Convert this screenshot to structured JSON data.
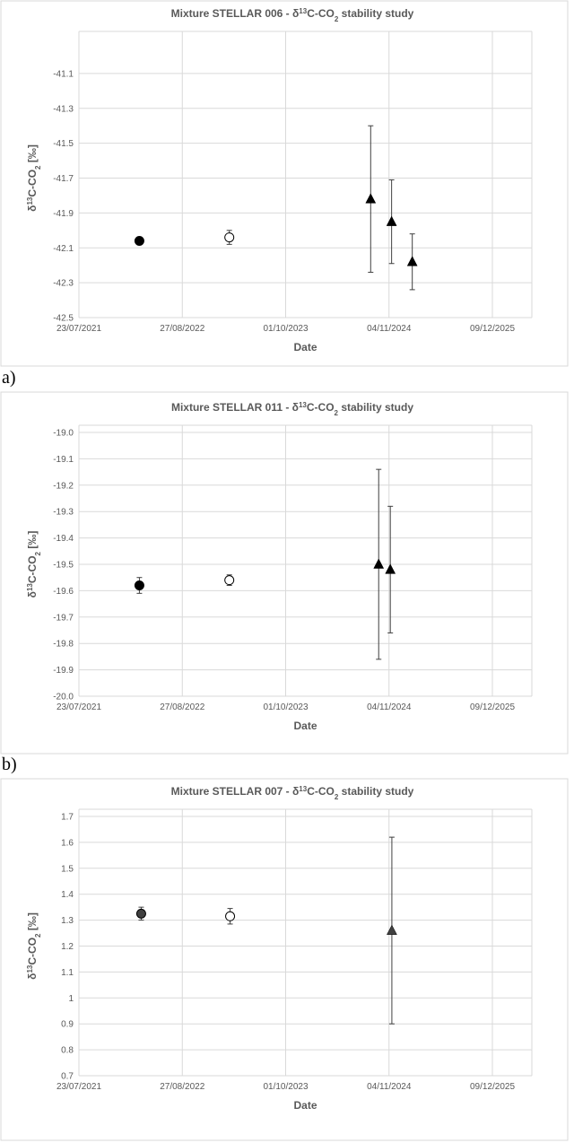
{
  "sublabels": [
    "a)",
    "b)"
  ],
  "chart_data": [
    {
      "type": "scatter",
      "title_prefix": "Mixture STELLAR 006  - δ",
      "title_sup": "13",
      "title_mid": "C-CO",
      "title_sub": "2",
      "title_suffix": " stability study",
      "xlabel": "Date",
      "ylabel_prefix": "δ",
      "ylabel_sup": "13",
      "ylabel_mid": "C-CO",
      "ylabel_sub": "2",
      "ylabel_suffix": " [‰]",
      "x_ticks": [
        "23/07/2021",
        "27/08/2022",
        "01/10/2023",
        "04/11/2024",
        "09/12/2025"
      ],
      "x_range": [
        "23/07/2021",
        "09/12/2025"
      ],
      "y_ticks": [
        "-41.1",
        "-41.3",
        "-41.5",
        "-41.7",
        "-41.9",
        "-42.1",
        "-42.3",
        "-42.5"
      ],
      "y_range": [
        -42.5,
        -40.9
      ],
      "grid": true,
      "legend": "none",
      "series": [
        {
          "marker": "filled-circle",
          "points": [
            {
              "x": "14/03/2022",
              "y": -42.06,
              "err": 0.01
            }
          ]
        },
        {
          "marker": "open-circle",
          "points": [
            {
              "x": "25/02/2023",
              "y": -42.04,
              "err": 0.04
            }
          ]
        },
        {
          "marker": "filled-triangle",
          "points": [
            {
              "x": "25/08/2024",
              "y": -41.82,
              "err": 0.42
            },
            {
              "x": "14/11/2024",
              "y": -41.95,
              "err": 0.24
            },
            {
              "x": "02/02/2025",
              "y": -42.18,
              "err": 0.16
            }
          ]
        }
      ]
    },
    {
      "type": "scatter",
      "title_prefix": "Mixture STELLAR 011  - δ",
      "title_sup": "13",
      "title_mid": "C-CO",
      "title_sub": "2",
      "title_suffix": " stability study",
      "xlabel": "Date",
      "ylabel_prefix": "δ",
      "ylabel_sup": "13",
      "ylabel_mid": "C-CO",
      "ylabel_sub": "2",
      "ylabel_suffix": " [‰]",
      "x_ticks": [
        "23/07/2021",
        "27/08/2022",
        "01/10/2023",
        "04/11/2024",
        "09/12/2025"
      ],
      "x_range": [
        "23/07/2021",
        "09/12/2025"
      ],
      "y_ticks": [
        "-19.0",
        "-19.1",
        "-19.2",
        "-19.3",
        "-19.4",
        "-19.5",
        "-19.6",
        "-19.7",
        "-19.8",
        "-19.9",
        "-20.0"
      ],
      "y_range": [
        -20.0,
        -19.0
      ],
      "grid": true,
      "legend": "none",
      "series": [
        {
          "marker": "filled-circle",
          "points": [
            {
              "x": "14/03/2022",
              "y": -19.58,
              "err": 0.03
            }
          ]
        },
        {
          "marker": "open-circle",
          "points": [
            {
              "x": "25/02/2023",
              "y": -19.56,
              "err": 0.02
            }
          ]
        },
        {
          "marker": "filled-triangle",
          "points": [
            {
              "x": "25/09/2024",
              "y": -19.5,
              "err": 0.36
            },
            {
              "x": "09/11/2024",
              "y": -19.52,
              "err": 0.24
            }
          ]
        }
      ]
    },
    {
      "type": "scatter",
      "title_prefix": "Mixture STELLAR 007  - δ",
      "title_sup": "13",
      "title_mid": "C-CO",
      "title_sub": "2",
      "title_suffix": " stability study",
      "xlabel": "Date",
      "ylabel_prefix": "δ",
      "ylabel_sup": "13",
      "ylabel_mid": "C-CO",
      "ylabel_sub": "2",
      "ylabel_suffix": " [‰]",
      "x_ticks": [
        "23/07/2021",
        "27/08/2022",
        "01/10/2023",
        "04/11/2024",
        "09/12/2025"
      ],
      "x_range": [
        "23/07/2021",
        "09/12/2025"
      ],
      "y_ticks": [
        "1.7",
        "1.6",
        "1.5",
        "1.4",
        "1.3",
        "1.2",
        "1.1",
        "1",
        "0.9",
        "0.8",
        "0.7"
      ],
      "y_range": [
        0.7,
        1.7
      ],
      "grid": true,
      "legend": "none",
      "series": [
        {
          "marker": "filled-circle-gray",
          "points": [
            {
              "x": "21/03/2022",
              "y": 1.325,
              "err": 0.025
            }
          ]
        },
        {
          "marker": "open-circle",
          "points": [
            {
              "x": "28/02/2023",
              "y": 1.315,
              "err": 0.03
            }
          ]
        },
        {
          "marker": "filled-triangle-gray",
          "points": [
            {
              "x": "15/11/2024",
              "y": 1.26,
              "err": 0.36
            }
          ]
        }
      ]
    }
  ]
}
